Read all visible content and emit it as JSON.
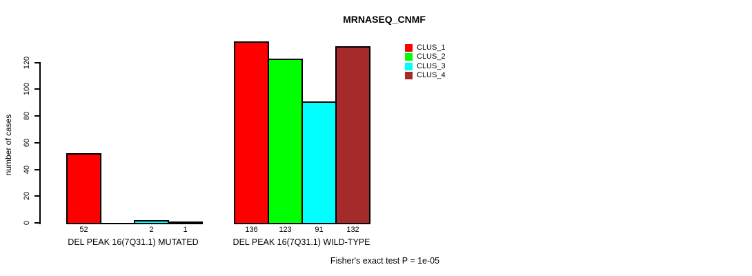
{
  "title": "MRNASEQ_CNMF",
  "ylabel": "number of cases",
  "footer": "Fisher's exact test P = 1e-05",
  "chart_data": {
    "type": "bar",
    "title": "MRNASEQ_CNMF",
    "ylabel": "number of cases",
    "xlabel": "",
    "ylim": [
      0,
      136
    ],
    "yticks": [
      0,
      20,
      40,
      60,
      80,
      100,
      120
    ],
    "grid": false,
    "legend_position": "right-inside",
    "categories": [
      "DEL PEAK 16(7Q31.1) MUTATED",
      "DEL PEAK 16(7Q31.1) WILD-TYPE"
    ],
    "series": [
      {
        "name": "CLUS_1",
        "color": "#ff0000",
        "values": [
          52,
          136
        ]
      },
      {
        "name": "CLUS_2",
        "color": "#00ff00",
        "values": [
          0,
          123
        ]
      },
      {
        "name": "CLUS_3",
        "color": "#00ffff",
        "values": [
          2,
          91
        ]
      },
      {
        "name": "CLUS_4",
        "color": "#a52a2a",
        "values": [
          1,
          132
        ]
      }
    ],
    "bar_labels": [
      [
        "52",
        "",
        "2",
        "1"
      ],
      [
        "136",
        "123",
        "91",
        "132"
      ]
    ],
    "annotation": "Fisher's exact test P = 1e-05"
  },
  "legend": {
    "items": [
      {
        "label": "CLUS_1",
        "color": "#ff0000"
      },
      {
        "label": "CLUS_2",
        "color": "#00ff00"
      },
      {
        "label": "CLUS_3",
        "color": "#00ffff"
      },
      {
        "label": "CLUS_4",
        "color": "#a52a2a"
      }
    ]
  },
  "colors": {
    "axis": "#000000",
    "text": "#000000",
    "background": "#ffffff"
  }
}
